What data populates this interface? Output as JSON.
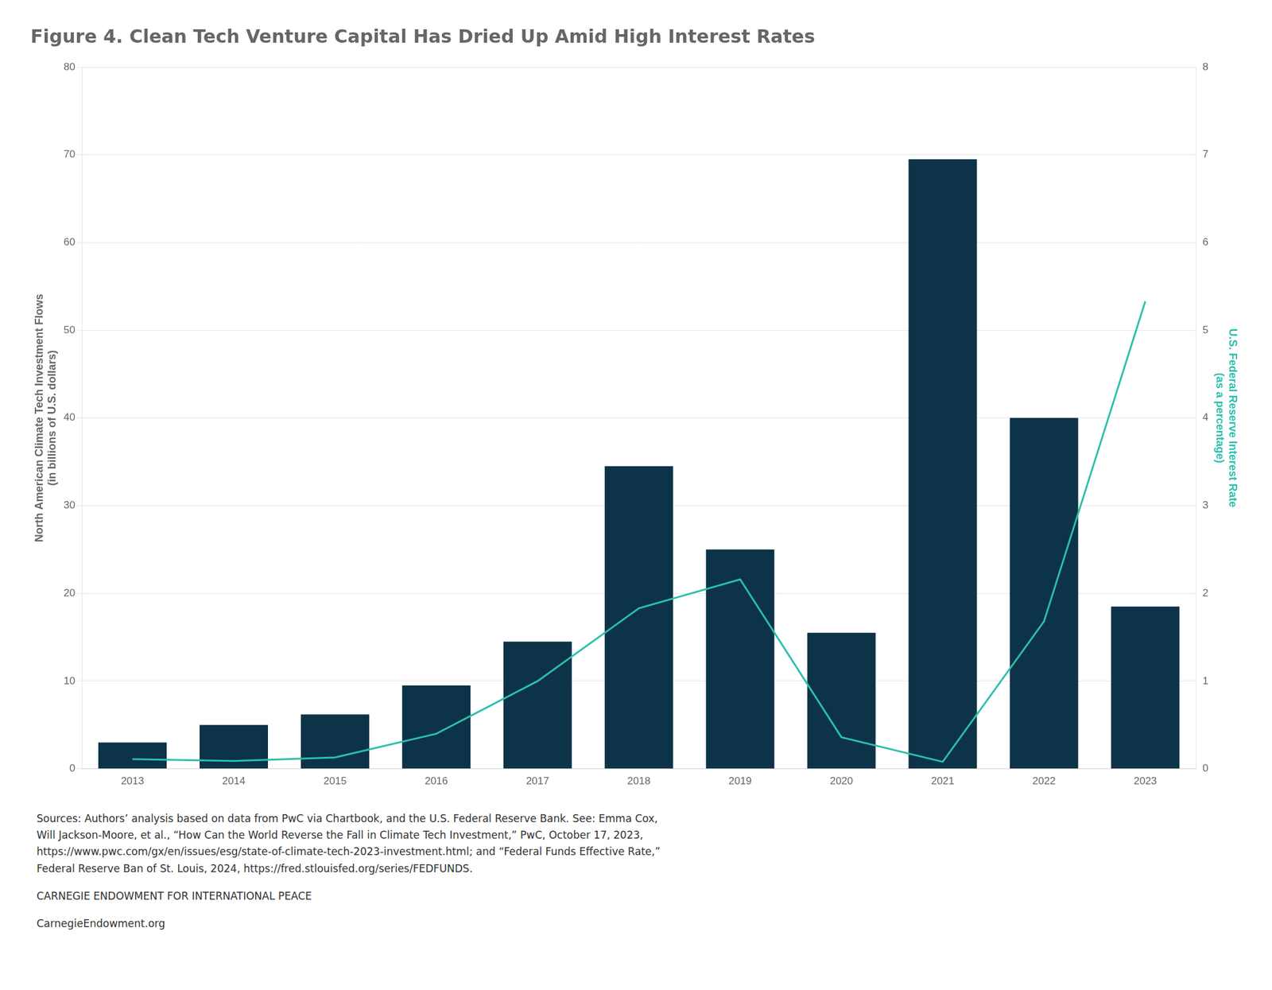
{
  "chart_data": {
    "type": "bar",
    "title": "Figure 4. Clean Tech Venture Capital Has Dried Up Amid High Interest Rates",
    "categories": [
      "2013",
      "2014",
      "2015",
      "2016",
      "2017",
      "2018",
      "2019",
      "2020",
      "2021",
      "2022",
      "2023"
    ],
    "series": [
      {
        "type": "bar",
        "color": "#0d3349",
        "axis": "y",
        "values": [
          3.0,
          5.0,
          6.2,
          9.5,
          14.5,
          34.5,
          25.0,
          15.5,
          69.5,
          40.0,
          18.5
        ]
      },
      {
        "type": "line",
        "color": "#2bbfad",
        "axis": "y2",
        "values": [
          0.11,
          0.09,
          0.13,
          0.4,
          1.0,
          1.83,
          2.16,
          0.36,
          0.08,
          1.68,
          5.33
        ]
      }
    ],
    "ylabel": [
      "North American Climate Tech Investment Flows",
      "(in billions of U.S. dollars)"
    ],
    "y2label": [
      "U.S. Federal Reserve Interest Rate",
      "(as a percentage)"
    ],
    "ylim": [
      0,
      80
    ],
    "yticks": [
      0,
      10,
      20,
      30,
      40,
      50,
      60,
      70,
      80
    ],
    "y2lim": [
      0,
      8
    ],
    "y2ticks": [
      0,
      1,
      2,
      3,
      4,
      5,
      6,
      7,
      8
    ],
    "grid": true,
    "annotations": [
      "Sources: Authors’ analysis based on data from PwC via Chartbook, and the U.S. Federal Reserve Bank. See: Emma Cox,\nWill Jackson-Moore, et al., “How Can the World Reverse the Fall in Climate Tech Investment,” PwC, October 17, 2023,\nhttps://www.pwc.com/gx/en/issues/esg/state-of-climate-tech-2023-investment.html; and “Federal Funds Effective Rate,”\nFederal Reserve Ban of St. Louis, 2024, https://fred.stlouisfed.org/series/FEDFUNDS.",
      "CARNEGIE ENDOWMENT FOR INTERNATIONAL PEACE",
      "CarnegieEndowment.org"
    ]
  }
}
